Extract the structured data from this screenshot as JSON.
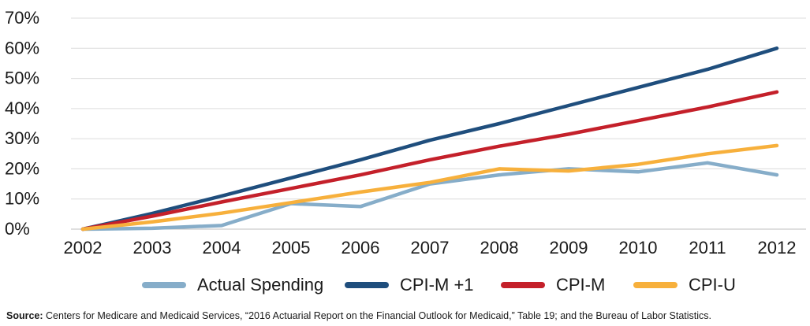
{
  "chart_data": {
    "type": "line",
    "categories": [
      "2002",
      "2003",
      "2004",
      "2005",
      "2006",
      "2007",
      "2008",
      "2009",
      "2010",
      "2011",
      "2012"
    ],
    "yticks": [
      "0%",
      "10%",
      "20%",
      "30%",
      "40%",
      "50%",
      "60%",
      "70%"
    ],
    "ylim": [
      0,
      70
    ],
    "grid": true,
    "legend_position": "bottom",
    "series": [
      {
        "name": "Actual Spending",
        "color": "#86adc9",
        "values": [
          0,
          0.3,
          1.2,
          8.5,
          7.5,
          15,
          18,
          20,
          19,
          22,
          18
        ]
      },
      {
        "name": "CPI-M +1",
        "color": "#1f4e7d",
        "values": [
          0,
          5.2,
          11,
          17,
          23,
          29.5,
          35,
          41,
          47,
          53,
          60
        ]
      },
      {
        "name": "CPI-M",
        "color": "#c4202a",
        "values": [
          0,
          4.3,
          9,
          13.5,
          18,
          23,
          27.5,
          31.5,
          36,
          40.5,
          45.5
        ]
      },
      {
        "name": "CPI-U",
        "color": "#f7b03c",
        "values": [
          0,
          2.4,
          5.3,
          8.8,
          12.3,
          15.5,
          20,
          19.3,
          21.5,
          25,
          27.7
        ]
      }
    ]
  },
  "source": {
    "label": "Source:",
    "text": "Centers for Medicare and Medicaid Services, “2016 Actuarial Report on the Financial Outlook for Medicaid,” Table 19; and the Bureau of Labor Statistics."
  }
}
